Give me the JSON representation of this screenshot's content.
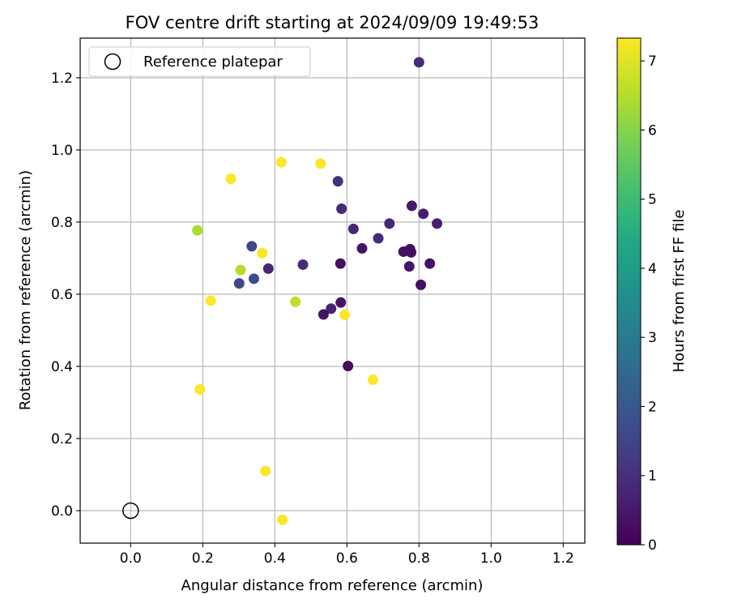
{
  "chart_data": {
    "type": "scatter",
    "title": "FOV centre drift starting at 2024/09/09 19:49:53",
    "xlabel": "Angular distance from reference (arcmin)",
    "ylabel": "Rotation from reference (arcmin)",
    "xlim": [
      -0.14,
      1.26
    ],
    "ylim": [
      -0.09,
      1.31
    ],
    "xticks": [
      0.0,
      0.2,
      0.4,
      0.6,
      0.8,
      1.0,
      1.2
    ],
    "xtick_labels": [
      "0.0",
      "0.2",
      "0.4",
      "0.6",
      "0.8",
      "1.0",
      "1.2"
    ],
    "yticks": [
      0.0,
      0.2,
      0.4,
      0.6,
      0.8,
      1.0,
      1.2
    ],
    "ytick_labels": [
      "0.0",
      "0.2",
      "0.4",
      "0.6",
      "0.8",
      "1.0",
      "1.2"
    ],
    "grid": true,
    "legend": {
      "position": "top-left",
      "entries": [
        "Reference platepar"
      ]
    },
    "reference_point": {
      "x": 0.0,
      "y": 0.0
    },
    "colorbar": {
      "label": "Hours from first FF file",
      "colormap": "viridis",
      "range": [
        0,
        7.33
      ],
      "ticks": [
        0,
        1,
        2,
        3,
        4,
        5,
        6,
        7
      ],
      "tick_labels": [
        "0",
        "1",
        "2",
        "3",
        "4",
        "5",
        "6",
        "7"
      ]
    },
    "points": [
      {
        "x": 0.8,
        "y": 1.243,
        "hours": 0.9
      },
      {
        "x": 0.575,
        "y": 0.913,
        "hours": 1.0
      },
      {
        "x": 0.585,
        "y": 0.837,
        "hours": 0.9
      },
      {
        "x": 0.78,
        "y": 0.845,
        "hours": 0.5
      },
      {
        "x": 0.812,
        "y": 0.823,
        "hours": 0.6
      },
      {
        "x": 0.85,
        "y": 0.796,
        "hours": 0.6
      },
      {
        "x": 0.718,
        "y": 0.796,
        "hours": 0.8
      },
      {
        "x": 0.618,
        "y": 0.781,
        "hours": 0.8
      },
      {
        "x": 0.687,
        "y": 0.755,
        "hours": 0.9
      },
      {
        "x": 0.642,
        "y": 0.727,
        "hours": 0.4
      },
      {
        "x": 0.757,
        "y": 0.718,
        "hours": 0.3
      },
      {
        "x": 0.775,
        "y": 0.725,
        "hours": 0.2
      },
      {
        "x": 0.778,
        "y": 0.716,
        "hours": 0.3
      },
      {
        "x": 0.773,
        "y": 0.677,
        "hours": 0.4
      },
      {
        "x": 0.83,
        "y": 0.685,
        "hours": 0.3
      },
      {
        "x": 0.805,
        "y": 0.626,
        "hours": 0.3
      },
      {
        "x": 0.582,
        "y": 0.685,
        "hours": 0.3
      },
      {
        "x": 0.478,
        "y": 0.682,
        "hours": 0.9
      },
      {
        "x": 0.382,
        "y": 0.671,
        "hours": 0.8
      },
      {
        "x": 0.336,
        "y": 0.733,
        "hours": 1.6
      },
      {
        "x": 0.342,
        "y": 0.643,
        "hours": 1.7
      },
      {
        "x": 0.301,
        "y": 0.63,
        "hours": 1.6
      },
      {
        "x": 0.583,
        "y": 0.577,
        "hours": 0.4
      },
      {
        "x": 0.556,
        "y": 0.56,
        "hours": 0.7
      },
      {
        "x": 0.535,
        "y": 0.544,
        "hours": 0.4
      },
      {
        "x": 0.603,
        "y": 0.401,
        "hours": 0.2
      },
      {
        "x": 0.185,
        "y": 0.777,
        "hours": 6.4
      },
      {
        "x": 0.305,
        "y": 0.667,
        "hours": 6.5
      },
      {
        "x": 0.457,
        "y": 0.579,
        "hours": 6.6
      },
      {
        "x": 0.278,
        "y": 0.92,
        "hours": 7.3
      },
      {
        "x": 0.418,
        "y": 0.966,
        "hours": 7.3
      },
      {
        "x": 0.527,
        "y": 0.962,
        "hours": 7.3
      },
      {
        "x": 0.365,
        "y": 0.714,
        "hours": 7.3
      },
      {
        "x": 0.222,
        "y": 0.582,
        "hours": 7.3
      },
      {
        "x": 0.594,
        "y": 0.543,
        "hours": 7.3
      },
      {
        "x": 0.192,
        "y": 0.336,
        "hours": 7.3
      },
      {
        "x": 0.672,
        "y": 0.363,
        "hours": 7.3
      },
      {
        "x": 0.374,
        "y": 0.11,
        "hours": 7.3
      },
      {
        "x": 0.421,
        "y": -0.025,
        "hours": 7.3
      }
    ]
  }
}
